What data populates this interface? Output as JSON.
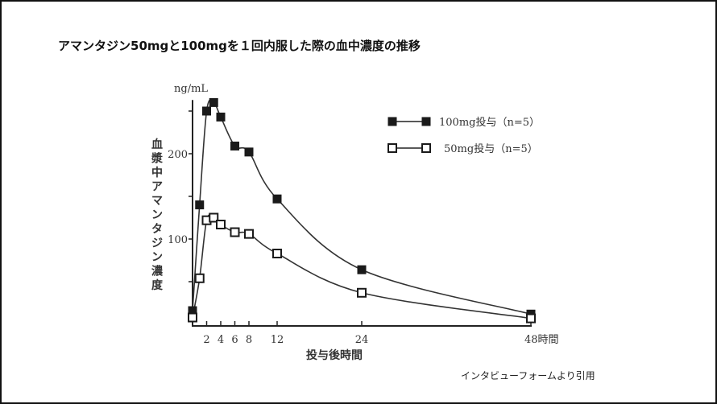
{
  "title": "アマンタジン50mgと100mgを１回内服した際の血中濃度の推移",
  "source_note": "インタビューフォームより引用",
  "chart_data": {
    "type": "line",
    "title": "アマンタジン50mgと100mgを１回内服した際の血中濃度の推移",
    "xlabel": "投与後時間",
    "x_unit": "時間",
    "ylabel": "血漿中アマンタジン濃度",
    "y_unit": "ng/mL",
    "xlim": [
      0,
      48
    ],
    "ylim": [
      0,
      263
    ],
    "x_ticks": [
      2,
      4,
      6,
      8,
      12,
      24,
      48
    ],
    "y_ticks": [
      50,
      100,
      150,
      200,
      250
    ],
    "y_tick_labels": {
      "100": "100",
      "200": "200"
    },
    "grid": false,
    "legend_position": "top-right",
    "x": [
      0,
      1,
      2,
      3,
      4,
      6,
      8,
      12,
      24,
      48
    ],
    "series": [
      {
        "name": "100mg投与（n=5）",
        "marker": "filled-square",
        "color": "#1a1a1a",
        "values": [
          16,
          140,
          250,
          260,
          243,
          209,
          202,
          147,
          64,
          12
        ]
      },
      {
        "name": "50mg投与（n=5）",
        "marker": "open-square",
        "color": "#1a1a1a",
        "values": [
          8,
          54,
          122,
          125,
          117,
          108,
          106,
          83,
          37,
          7
        ]
      }
    ]
  }
}
